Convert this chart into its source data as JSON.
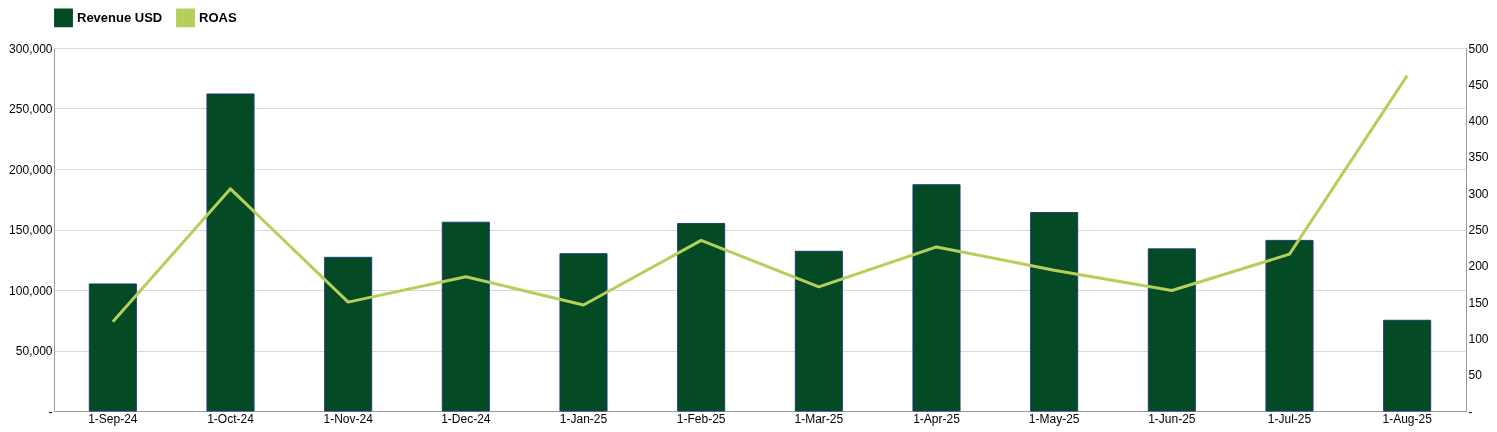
{
  "chart_data": {
    "type": "bar",
    "categories": [
      "1-Sep-24",
      "1-Oct-24",
      "1-Nov-24",
      "1-Dec-24",
      "1-Jan-25",
      "1-Feb-25",
      "1-Mar-25",
      "1-Apr-25",
      "1-May-25",
      "1-Jun-25",
      "1-Jul-25",
      "1-Aug-25"
    ],
    "series": [
      {
        "name": "Revenue USD",
        "color": "#034a25",
        "values": [
          105000,
          262000,
          127000,
          156000,
          130000,
          155000,
          132000,
          187000,
          164000,
          134000,
          141000,
          75000
        ]
      },
      {
        "name": "ROAS",
        "type": "line",
        "axis": "y2",
        "color": "#b5cf5a",
        "values": [
          123,
          306,
          150,
          185,
          146,
          235,
          171,
          226,
          194,
          166,
          216,
          462
        ]
      }
    ],
    "ylim": [
      0,
      300000
    ],
    "yticks": [
      {
        "value": 0,
        "label": "-"
      },
      {
        "value": 50000,
        "label": "50,000"
      },
      {
        "value": 100000,
        "label": "100,000"
      },
      {
        "value": 150000,
        "label": "150,000"
      },
      {
        "value": 200000,
        "label": "200,000"
      },
      {
        "value": 250000,
        "label": "250,000"
      },
      {
        "value": 300000,
        "label": "300,000"
      }
    ],
    "y2lim": [
      0,
      500
    ],
    "y2ticks": [
      {
        "value": 0,
        "label": "-"
      },
      50,
      100,
      150,
      200,
      250,
      300,
      350,
      400,
      450,
      500
    ],
    "grid": "y",
    "legend": "top"
  }
}
